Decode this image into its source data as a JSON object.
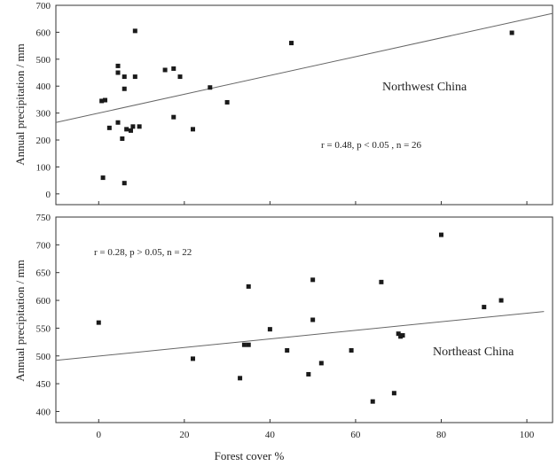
{
  "chart_data": [
    {
      "type": "scatter",
      "xlabel": "Forest cover %",
      "ylabel": "Annual precipitation / mm",
      "region_label": "Northwest China",
      "stats_label": "r = 0.48,  p < 0.05 ,  n = 26",
      "xlim": [
        -10,
        106
      ],
      "ylim": [
        -40,
        700
      ],
      "x_ticks": [
        0,
        20,
        40,
        60,
        80,
        100
      ],
      "y_ticks": [
        0,
        100,
        200,
        300,
        400,
        500,
        600,
        700
      ],
      "x_tick_labels_visible": false,
      "trendline": {
        "x": [
          -10,
          106
        ],
        "y": [
          265,
          670
        ]
      },
      "points": [
        {
          "x": 0.7,
          "y": 345
        },
        {
          "x": 1.5,
          "y": 348
        },
        {
          "x": 1.0,
          "y": 60
        },
        {
          "x": 2.5,
          "y": 245
        },
        {
          "x": 4.5,
          "y": 475
        },
        {
          "x": 4.5,
          "y": 450
        },
        {
          "x": 4.5,
          "y": 265
        },
        {
          "x": 6.0,
          "y": 435
        },
        {
          "x": 6.0,
          "y": 390
        },
        {
          "x": 6.0,
          "y": 40
        },
        {
          "x": 5.5,
          "y": 205
        },
        {
          "x": 6.5,
          "y": 240
        },
        {
          "x": 7.5,
          "y": 235
        },
        {
          "x": 8.0,
          "y": 250
        },
        {
          "x": 8.5,
          "y": 435
        },
        {
          "x": 8.5,
          "y": 605
        },
        {
          "x": 9.5,
          "y": 250
        },
        {
          "x": 15.5,
          "y": 460
        },
        {
          "x": 17.5,
          "y": 465
        },
        {
          "x": 17.5,
          "y": 285
        },
        {
          "x": 19.0,
          "y": 435
        },
        {
          "x": 22.0,
          "y": 240
        },
        {
          "x": 26.0,
          "y": 395
        },
        {
          "x": 30.0,
          "y": 340
        },
        {
          "x": 45.0,
          "y": 560
        },
        {
          "x": 96.5,
          "y": 598
        }
      ]
    },
    {
      "type": "scatter",
      "xlabel": "Forest cover %",
      "ylabel": "Annual precipitation / mm",
      "region_label": "Northeast China",
      "stats_label": "r = 0.28,  p > 0.05,  n = 22",
      "xlim": [
        -10,
        106
      ],
      "ylim": [
        380,
        750
      ],
      "x_ticks": [
        0,
        20,
        40,
        60,
        80,
        100
      ],
      "y_ticks": [
        400,
        450,
        500,
        550,
        600,
        650,
        700,
        750
      ],
      "x_tick_labels_visible": true,
      "trendline": {
        "x": [
          -10,
          104
        ],
        "y": [
          492,
          580
        ]
      },
      "points": [
        {
          "x": 0,
          "y": 560
        },
        {
          "x": 22,
          "y": 495
        },
        {
          "x": 33,
          "y": 460
        },
        {
          "x": 34,
          "y": 520
        },
        {
          "x": 35,
          "y": 520
        },
        {
          "x": 35,
          "y": 625
        },
        {
          "x": 40,
          "y": 548
        },
        {
          "x": 44,
          "y": 510
        },
        {
          "x": 49,
          "y": 467
        },
        {
          "x": 50,
          "y": 637
        },
        {
          "x": 50,
          "y": 565
        },
        {
          "x": 52,
          "y": 487
        },
        {
          "x": 59,
          "y": 510
        },
        {
          "x": 64,
          "y": 418
        },
        {
          "x": 66,
          "y": 633
        },
        {
          "x": 69,
          "y": 433
        },
        {
          "x": 70,
          "y": 540
        },
        {
          "x": 70.5,
          "y": 535
        },
        {
          "x": 71,
          "y": 537
        },
        {
          "x": 80,
          "y": 718
        },
        {
          "x": 90,
          "y": 588
        },
        {
          "x": 94,
          "y": 600
        }
      ]
    }
  ]
}
